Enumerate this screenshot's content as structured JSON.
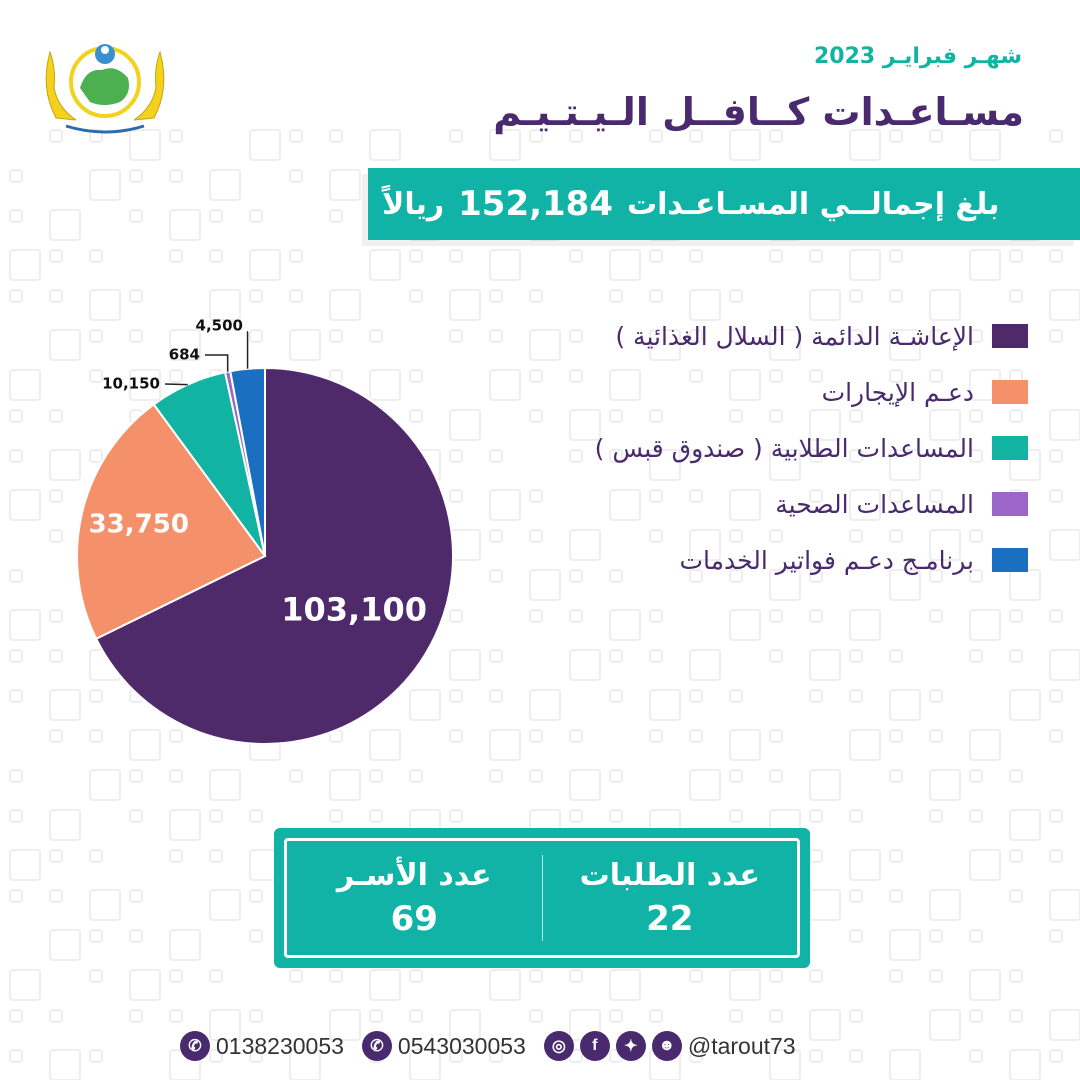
{
  "header": {
    "month": "شهـر فبرايـر 2023",
    "title": "مسـاعـدات كــافــل الـيـتـيـم",
    "total_label": "بلغ إجمالــي المسـاعـدات",
    "total_amount": "152,184",
    "total_currency": "ريالاً"
  },
  "chart_data": {
    "type": "pie",
    "categories": [
      "الإعاشـة الدائمة ( السلال الغذائية )",
      "دعـم الإيجارات",
      "المساعدات الطلابية ( صندوق قبس )",
      "المساعدات الصحية",
      "برنامـج دعـم فواتير الخدمات"
    ],
    "values": [
      103100,
      33750,
      10150,
      684,
      4500
    ],
    "labels": [
      "103,100",
      "33,750",
      "10,150",
      "684",
      "4,500"
    ],
    "colors": [
      "#4f2a6b",
      "#f4906a",
      "#12b3a3",
      "#9b66c8",
      "#1a6fc0"
    ],
    "legend_position": "right"
  },
  "stats": {
    "requests_label": "عدد الطلبات",
    "requests_value": "22",
    "families_label": "عدد الأسـر",
    "families_value": "69"
  },
  "footer": {
    "phone": "0138230053",
    "whatsapp": "0543030053",
    "handle": "@tarout73",
    "icons": [
      "phone-icon",
      "whatsapp-icon",
      "instagram-icon",
      "facebook-icon",
      "twitter-icon",
      "snapchat-icon"
    ]
  }
}
